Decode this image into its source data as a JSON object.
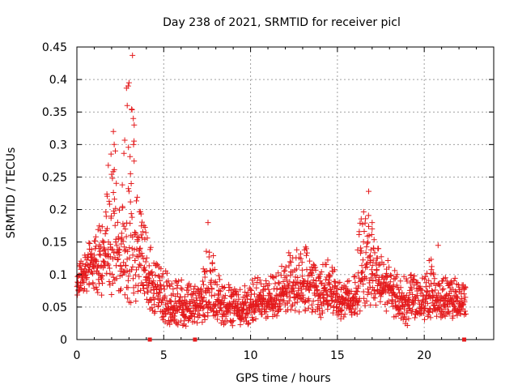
{
  "chart_data": {
    "type": "scatter",
    "title": "Day 238 of 2021, SRMTID for receiver picl",
    "xlabel": "GPS time / hours",
    "ylabel": "SRMTID / TECUs",
    "xlim": [
      0,
      24
    ],
    "ylim": [
      0,
      0.45
    ],
    "xticks": [
      0,
      5,
      10,
      15,
      20
    ],
    "xtick_labels": [
      "0",
      "5",
      "10",
      "15",
      "20"
    ],
    "yticks": [
      0,
      0.05,
      0.1,
      0.15,
      0.2,
      0.25,
      0.3,
      0.35,
      0.4,
      0.45
    ],
    "ytick_labels": [
      "0",
      "0.05",
      "0.1",
      "0.15",
      "0.2",
      "0.25",
      "0.3",
      "0.35",
      "0.4",
      "0.45"
    ],
    "grid": true,
    "marker": "+",
    "color": "#e41a1c",
    "axis_marks": {
      "note": "small red squares drawn on the x-axis",
      "x": [
        4.2,
        6.8,
        22.3
      ]
    },
    "envelope": {
      "note": "approximate spread of the ~2000 scatter points, sampled every 0.5 h: [hour, low, median, high]",
      "points": [
        [
          0.0,
          0.06,
          0.08,
          0.1
        ],
        [
          0.5,
          0.07,
          0.11,
          0.15
        ],
        [
          1.0,
          0.07,
          0.12,
          0.16
        ],
        [
          1.5,
          0.06,
          0.12,
          0.19
        ],
        [
          2.0,
          0.06,
          0.15,
          0.32
        ],
        [
          2.5,
          0.06,
          0.15,
          0.26
        ],
        [
          3.0,
          0.05,
          0.18,
          0.44
        ],
        [
          3.5,
          0.05,
          0.15,
          0.22
        ],
        [
          4.0,
          0.04,
          0.1,
          0.18
        ],
        [
          4.5,
          0.04,
          0.08,
          0.12
        ],
        [
          5.0,
          0.02,
          0.06,
          0.11
        ],
        [
          5.5,
          0.02,
          0.05,
          0.09
        ],
        [
          6.0,
          0.02,
          0.05,
          0.1
        ],
        [
          6.5,
          0.02,
          0.05,
          0.09
        ],
        [
          7.0,
          0.02,
          0.05,
          0.08
        ],
        [
          7.5,
          0.03,
          0.08,
          0.18
        ],
        [
          8.0,
          0.03,
          0.06,
          0.11
        ],
        [
          8.5,
          0.02,
          0.05,
          0.09
        ],
        [
          9.0,
          0.02,
          0.05,
          0.08
        ],
        [
          9.5,
          0.02,
          0.05,
          0.08
        ],
        [
          10.0,
          0.02,
          0.05,
          0.09
        ],
        [
          10.5,
          0.03,
          0.06,
          0.1
        ],
        [
          11.0,
          0.03,
          0.06,
          0.1
        ],
        [
          11.5,
          0.03,
          0.06,
          0.1
        ],
        [
          12.0,
          0.04,
          0.08,
          0.13
        ],
        [
          12.5,
          0.04,
          0.08,
          0.14
        ],
        [
          13.0,
          0.04,
          0.09,
          0.16
        ],
        [
          13.5,
          0.04,
          0.08,
          0.12
        ],
        [
          14.0,
          0.03,
          0.07,
          0.11
        ],
        [
          14.5,
          0.04,
          0.08,
          0.13
        ],
        [
          15.0,
          0.03,
          0.06,
          0.1
        ],
        [
          15.5,
          0.03,
          0.06,
          0.09
        ],
        [
          16.0,
          0.03,
          0.06,
          0.1
        ],
        [
          16.5,
          0.05,
          0.11,
          0.23
        ],
        [
          17.0,
          0.05,
          0.11,
          0.18
        ],
        [
          17.5,
          0.05,
          0.09,
          0.13
        ],
        [
          18.0,
          0.04,
          0.08,
          0.12
        ],
        [
          18.5,
          0.02,
          0.06,
          0.1
        ],
        [
          19.0,
          0.02,
          0.06,
          0.1
        ],
        [
          19.5,
          0.03,
          0.06,
          0.1
        ],
        [
          20.0,
          0.03,
          0.06,
          0.1
        ],
        [
          20.5,
          0.03,
          0.07,
          0.14
        ],
        [
          21.0,
          0.03,
          0.06,
          0.1
        ],
        [
          21.5,
          0.03,
          0.06,
          0.09
        ],
        [
          22.0,
          0.03,
          0.06,
          0.1
        ],
        [
          22.4,
          0.03,
          0.05,
          0.08
        ]
      ]
    },
    "spikes": [
      [
        3.2,
        0.437
      ],
      [
        2.95,
        0.39
      ],
      [
        3.0,
        0.395
      ],
      [
        2.9,
        0.36
      ],
      [
        3.3,
        0.33
      ],
      [
        2.1,
        0.32
      ],
      [
        2.15,
        0.3
      ],
      [
        3.25,
        0.34
      ],
      [
        7.55,
        0.18
      ],
      [
        16.8,
        0.228
      ],
      [
        17.0,
        0.18
      ],
      [
        20.8,
        0.145
      ]
    ]
  }
}
